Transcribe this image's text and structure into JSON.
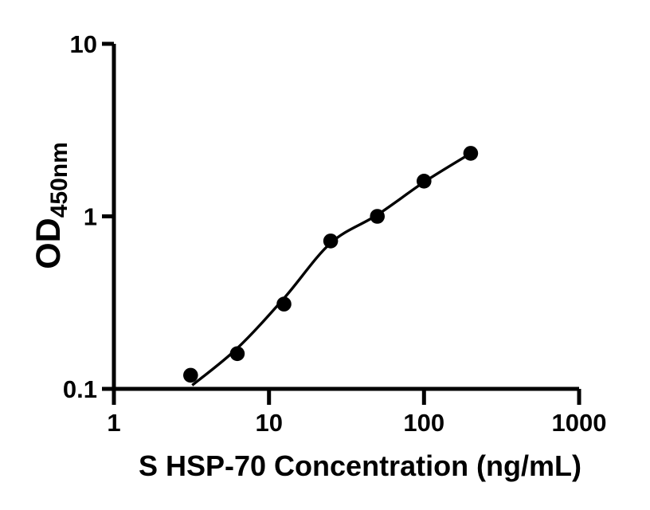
{
  "figure": {
    "background_color": "#ffffff",
    "ink_color": "#000000"
  },
  "chart_data": {
    "type": "scatter",
    "title": "",
    "xlabel": "S HSP-70 Concentration (ng/mL)",
    "ylabel_main": "OD",
    "ylabel_sub": "450nm",
    "x_scale": "log",
    "y_scale": "log",
    "xlim": [
      1,
      1000
    ],
    "ylim": [
      0.1,
      10
    ],
    "x_ticks": [
      1,
      10,
      100,
      1000
    ],
    "x_tick_labels": [
      "1",
      "10",
      "100",
      "1000"
    ],
    "y_ticks": [
      0.1,
      1,
      10
    ],
    "y_tick_labels": [
      "0.1",
      "1",
      "10"
    ],
    "grid": false,
    "legend": "none",
    "marker_color": "#000000",
    "line_color": "#000000",
    "series": [
      {
        "name": "standard-points",
        "type": "scatter",
        "marker": "filled-circle",
        "points": [
          {
            "x": 3.125,
            "y": 0.12
          },
          {
            "x": 6.25,
            "y": 0.16
          },
          {
            "x": 12.5,
            "y": 0.31
          },
          {
            "x": 25,
            "y": 0.72
          },
          {
            "x": 50,
            "y": 1.0
          },
          {
            "x": 100,
            "y": 1.6
          },
          {
            "x": 200,
            "y": 2.32
          }
        ]
      },
      {
        "name": "fitted-curve",
        "type": "line",
        "points": [
          {
            "x": 3.2,
            "y": 0.105
          },
          {
            "x": 6.25,
            "y": 0.172
          },
          {
            "x": 12.5,
            "y": 0.335
          },
          {
            "x": 25,
            "y": 0.7
          },
          {
            "x": 50,
            "y": 1.02
          },
          {
            "x": 100,
            "y": 1.58
          },
          {
            "x": 200,
            "y": 2.32
          }
        ]
      }
    ]
  }
}
